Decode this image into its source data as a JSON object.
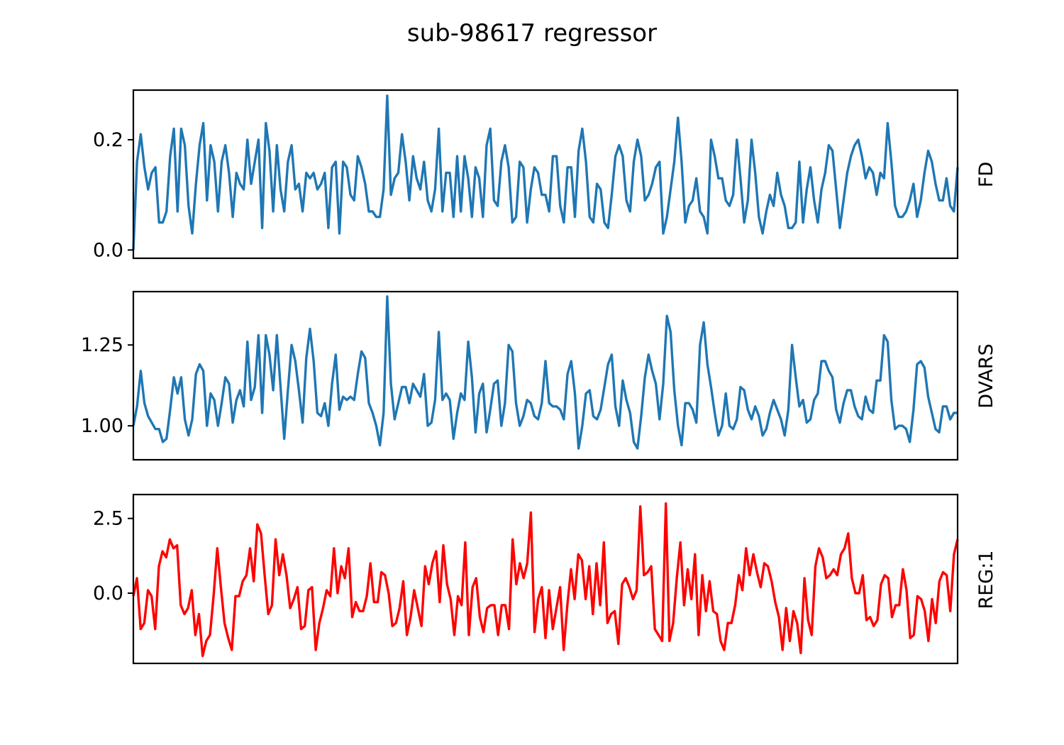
{
  "title": "sub-98617 regressor",
  "chart_data": [
    {
      "type": "line",
      "ylabel": "FD",
      "color": "#1f77b4",
      "ylim": [
        -0.015,
        0.29
      ],
      "yticks": [
        0.0,
        0.2
      ],
      "ytick_labels": [
        "0.0",
        "0.2"
      ],
      "xticks": "none",
      "grid": false,
      "series": [
        {
          "values": [
            0.0,
            0.16,
            0.21,
            0.15,
            0.11,
            0.14,
            0.15,
            0.05,
            0.05,
            0.07,
            0.17,
            0.22,
            0.07,
            0.22,
            0.19,
            0.08,
            0.03,
            0.12,
            0.19,
            0.23,
            0.09,
            0.19,
            0.16,
            0.07,
            0.16,
            0.19,
            0.14,
            0.06,
            0.14,
            0.12,
            0.11,
            0.2,
            0.12,
            0.16,
            0.2,
            0.04,
            0.23,
            0.18,
            0.07,
            0.19,
            0.11,
            0.07,
            0.16,
            0.19,
            0.11,
            0.12,
            0.07,
            0.14,
            0.13,
            0.14,
            0.11,
            0.12,
            0.14,
            0.04,
            0.15,
            0.16,
            0.03,
            0.16,
            0.15,
            0.1,
            0.09,
            0.17,
            0.15,
            0.12,
            0.07,
            0.07,
            0.06,
            0.06,
            0.11,
            0.28,
            0.1,
            0.13,
            0.14,
            0.21,
            0.16,
            0.09,
            0.17,
            0.13,
            0.11,
            0.16,
            0.09,
            0.07,
            0.11,
            0.22,
            0.07,
            0.14,
            0.14,
            0.06,
            0.17,
            0.07,
            0.17,
            0.13,
            0.06,
            0.15,
            0.13,
            0.06,
            0.19,
            0.22,
            0.09,
            0.08,
            0.16,
            0.19,
            0.15,
            0.05,
            0.06,
            0.16,
            0.15,
            0.05,
            0.11,
            0.15,
            0.14,
            0.1,
            0.1,
            0.07,
            0.17,
            0.17,
            0.08,
            0.05,
            0.15,
            0.15,
            0.06,
            0.18,
            0.22,
            0.16,
            0.06,
            0.05,
            0.12,
            0.11,
            0.05,
            0.04,
            0.1,
            0.17,
            0.19,
            0.17,
            0.09,
            0.07,
            0.16,
            0.2,
            0.17,
            0.09,
            0.1,
            0.12,
            0.15,
            0.16,
            0.03,
            0.06,
            0.11,
            0.16,
            0.24,
            0.16,
            0.05,
            0.08,
            0.09,
            0.13,
            0.07,
            0.06,
            0.03,
            0.2,
            0.17,
            0.13,
            0.13,
            0.09,
            0.08,
            0.1,
            0.2,
            0.13,
            0.05,
            0.09,
            0.2,
            0.14,
            0.06,
            0.03,
            0.07,
            0.1,
            0.08,
            0.14,
            0.1,
            0.08,
            0.04,
            0.04,
            0.05,
            0.16,
            0.05,
            0.11,
            0.15,
            0.09,
            0.05,
            0.11,
            0.14,
            0.19,
            0.18,
            0.11,
            0.04,
            0.09,
            0.14,
            0.17,
            0.19,
            0.2,
            0.17,
            0.13,
            0.15,
            0.14,
            0.1,
            0.14,
            0.13,
            0.23,
            0.16,
            0.08,
            0.06,
            0.06,
            0.07,
            0.09,
            0.12,
            0.06,
            0.09,
            0.14,
            0.18,
            0.16,
            0.12,
            0.09,
            0.09,
            0.13,
            0.08,
            0.07,
            0.15
          ]
        }
      ]
    },
    {
      "type": "line",
      "ylabel": "DVARS",
      "color": "#1f77b4",
      "ylim": [
        0.895,
        1.415
      ],
      "yticks": [
        1.0,
        1.25
      ],
      "ytick_labels": [
        "1.00",
        "1.25"
      ],
      "xticks": "none",
      "grid": false,
      "series": [
        {
          "values": [
            1.0,
            1.06,
            1.17,
            1.07,
            1.03,
            1.01,
            0.99,
            0.99,
            0.95,
            0.96,
            1.05,
            1.15,
            1.1,
            1.15,
            1.02,
            0.97,
            1.02,
            1.16,
            1.19,
            1.17,
            1.0,
            1.1,
            1.08,
            1.0,
            1.07,
            1.15,
            1.13,
            1.01,
            1.08,
            1.11,
            1.06,
            1.26,
            1.08,
            1.12,
            1.28,
            1.04,
            1.28,
            1.22,
            1.11,
            1.28,
            1.12,
            0.96,
            1.11,
            1.25,
            1.2,
            1.11,
            1.01,
            1.21,
            1.3,
            1.2,
            1.04,
            1.03,
            1.07,
            1.0,
            1.13,
            1.22,
            1.05,
            1.09,
            1.08,
            1.09,
            1.08,
            1.16,
            1.23,
            1.21,
            1.07,
            1.04,
            1.0,
            0.94,
            1.04,
            1.4,
            1.13,
            1.02,
            1.07,
            1.12,
            1.12,
            1.07,
            1.13,
            1.11,
            1.09,
            1.16,
            1.0,
            1.01,
            1.08,
            1.29,
            1.08,
            1.1,
            1.08,
            0.96,
            1.04,
            1.1,
            1.08,
            1.26,
            1.15,
            0.98,
            1.1,
            1.13,
            0.98,
            1.05,
            1.13,
            1.14,
            1.0,
            1.07,
            1.25,
            1.23,
            1.07,
            1.0,
            1.03,
            1.08,
            1.07,
            1.03,
            1.02,
            1.07,
            1.2,
            1.07,
            1.06,
            1.06,
            1.05,
            1.02,
            1.16,
            1.2,
            1.1,
            0.93,
            1.0,
            1.1,
            1.11,
            1.03,
            1.02,
            1.05,
            1.12,
            1.19,
            1.22,
            1.06,
            1.0,
            1.14,
            1.08,
            1.04,
            0.95,
            0.93,
            1.03,
            1.15,
            1.22,
            1.17,
            1.13,
            1.02,
            1.13,
            1.34,
            1.29,
            1.11,
            1.0,
            0.94,
            1.07,
            1.07,
            1.05,
            1.01,
            1.25,
            1.32,
            1.19,
            1.12,
            1.04,
            0.97,
            1.0,
            1.1,
            1.0,
            0.99,
            1.02,
            1.12,
            1.11,
            1.05,
            1.02,
            1.06,
            1.03,
            0.97,
            0.99,
            1.04,
            1.08,
            1.05,
            1.02,
            0.97,
            1.05,
            1.25,
            1.15,
            1.06,
            1.08,
            1.01,
            1.02,
            1.08,
            1.1,
            1.2,
            1.2,
            1.17,
            1.15,
            1.05,
            1.01,
            1.07,
            1.11,
            1.11,
            1.06,
            1.03,
            1.02,
            1.09,
            1.05,
            1.04,
            1.14,
            1.14,
            1.28,
            1.26,
            1.08,
            0.99,
            1.0,
            1.0,
            0.99,
            0.95,
            1.05,
            1.19,
            1.2,
            1.18,
            1.09,
            1.04,
            0.99,
            0.98,
            1.06,
            1.06,
            1.02,
            1.04,
            1.04
          ]
        }
      ]
    },
    {
      "type": "line",
      "ylabel": "REG:1",
      "color": "#ff0000",
      "ylim": [
        -2.35,
        3.3
      ],
      "yticks": [
        0.0,
        2.5
      ],
      "ytick_labels": [
        "0.0",
        "2.5"
      ],
      "xticks": "none",
      "grid": false,
      "series": [
        {
          "values": [
            -0.1,
            0.5,
            -1.2,
            -1.0,
            0.1,
            -0.1,
            -1.2,
            0.9,
            1.4,
            1.2,
            1.8,
            1.5,
            1.6,
            -0.4,
            -0.7,
            -0.5,
            0.1,
            -1.4,
            -0.7,
            -2.1,
            -1.6,
            -1.4,
            -0.1,
            1.5,
            0.2,
            -1.0,
            -1.5,
            -1.9,
            -0.1,
            -0.1,
            0.4,
            0.6,
            1.5,
            0.4,
            2.3,
            2.0,
            0.6,
            -0.7,
            -0.4,
            1.8,
            0.6,
            1.3,
            0.6,
            -0.5,
            -0.2,
            0.2,
            -1.2,
            -1.1,
            0.1,
            0.2,
            -1.9,
            -1.0,
            -0.5,
            0.1,
            -0.1,
            1.5,
            0.0,
            0.9,
            0.5,
            1.5,
            -0.8,
            -0.3,
            -0.6,
            -0.6,
            -0.1,
            1.0,
            -0.3,
            -0.3,
            0.7,
            0.6,
            0.0,
            -1.1,
            -1.0,
            -0.5,
            0.4,
            -1.4,
            -0.8,
            0.1,
            -0.5,
            -1.1,
            0.9,
            0.3,
            1.0,
            1.4,
            -0.3,
            1.6,
            0.3,
            -0.2,
            -1.4,
            -0.1,
            -0.4,
            1.7,
            -1.4,
            0.2,
            0.5,
            -0.8,
            -1.3,
            -0.5,
            -0.4,
            -0.4,
            -1.4,
            -0.4,
            -0.4,
            -1.2,
            1.8,
            0.3,
            1.0,
            0.5,
            1.0,
            2.7,
            -1.3,
            -0.2,
            0.2,
            -1.5,
            0.1,
            -1.2,
            -0.5,
            0.2,
            -1.9,
            -0.4,
            0.8,
            -0.2,
            1.3,
            1.1,
            -0.2,
            0.9,
            -0.7,
            1.0,
            -0.4,
            1.7,
            -1.0,
            -0.7,
            -0.6,
            -1.7,
            0.3,
            0.5,
            0.2,
            -0.2,
            0.1,
            2.9,
            0.6,
            0.7,
            0.9,
            -1.2,
            -1.4,
            -1.6,
            3.0,
            -1.6,
            -1.0,
            0.5,
            1.7,
            -0.4,
            0.8,
            -0.2,
            1.3,
            -1.4,
            0.6,
            -0.6,
            0.4,
            -0.6,
            -0.7,
            -1.6,
            -1.9,
            -1.0,
            -1.0,
            -0.4,
            0.6,
            0.1,
            1.5,
            0.6,
            1.3,
            0.7,
            0.2,
            1.0,
            0.9,
            0.4,
            -0.3,
            -0.8,
            -1.9,
            -0.5,
            -1.6,
            -0.6,
            -1.0,
            -2.0,
            0.5,
            -0.9,
            -1.4,
            0.9,
            1.5,
            1.2,
            0.5,
            0.6,
            0.8,
            0.6,
            1.3,
            1.5,
            2.0,
            0.5,
            0.0,
            0.0,
            0.6,
            -0.9,
            -0.8,
            -1.1,
            -0.9,
            0.3,
            0.6,
            0.5,
            -0.8,
            -0.4,
            -0.4,
            0.8,
            0.1,
            -1.5,
            -1.4,
            -0.1,
            -0.2,
            -0.6,
            -1.6,
            -0.2,
            -1.0,
            0.4,
            0.7,
            0.6,
            -0.6,
            1.3,
            1.8
          ]
        }
      ]
    }
  ]
}
